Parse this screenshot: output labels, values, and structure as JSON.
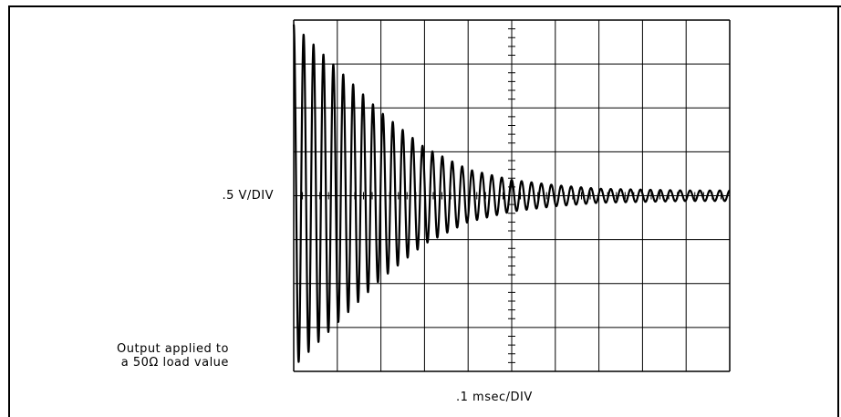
{
  "chart_data": {
    "type": "line",
    "title": "",
    "xlabel": ".1 msec/DIV",
    "ylabel": ".5 V/DIV",
    "x_divisions": 10,
    "y_divisions": 8,
    "x_unit_per_div_msec": 0.1,
    "y_unit_per_div_volt": 0.5,
    "xlim_msec": [
      0,
      1.0
    ],
    "ylim_volt": [
      -2.0,
      2.0
    ],
    "grid": true,
    "series": [
      {
        "name": "",
        "description_points": [
          {
            "t_msec": 0.0,
            "peak_volt": 1.95
          },
          {
            "t_msec": 0.1,
            "peak_volt": 1.45
          },
          {
            "t_msec": 0.2,
            "peak_volt": 0.95
          },
          {
            "t_msec": 0.3,
            "peak_volt": 0.55
          },
          {
            "t_msec": 0.4,
            "peak_volt": 0.3
          },
          {
            "t_msec": 0.5,
            "peak_volt": 0.18
          },
          {
            "t_msec": 0.6,
            "peak_volt": 0.12
          },
          {
            "t_msec": 0.7,
            "peak_volt": 0.08
          },
          {
            "t_msec": 0.8,
            "peak_volt": 0.07
          },
          {
            "t_msec": 0.9,
            "peak_volt": 0.06
          },
          {
            "t_msec": 1.0,
            "peak_volt": 0.06
          }
        ],
        "cycles_per_div": 4.4
      }
    ]
  },
  "labels": {
    "vertical_scale": ".5 V/DIV",
    "horizontal_scale": ".1 msec/DIV",
    "note_line1": "Output applied to",
    "note_line2": "a 50Ω load value"
  }
}
